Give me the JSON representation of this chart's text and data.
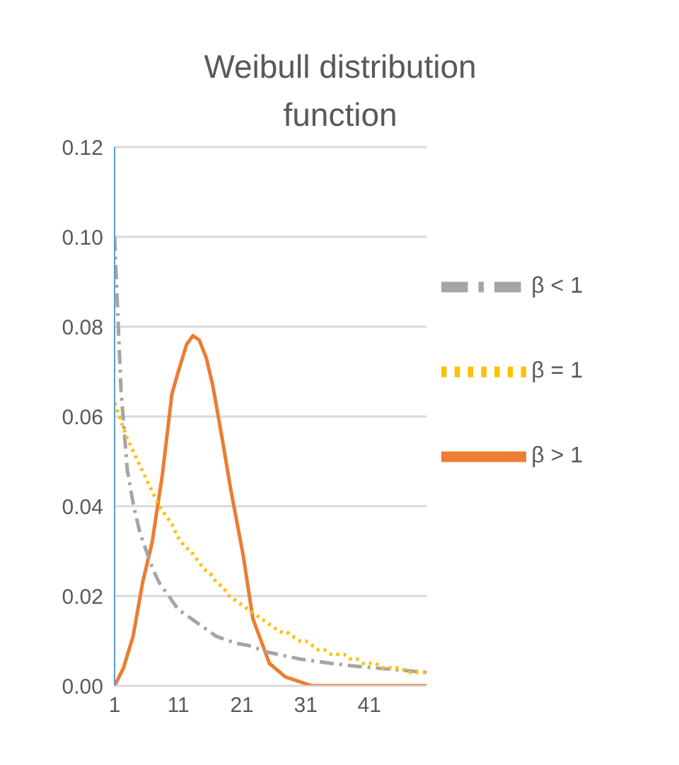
{
  "chart_data": {
    "type": "line",
    "title": "Weibull distribution function",
    "xlim": [
      1,
      50
    ],
    "xticks": [
      1,
      11,
      21,
      31,
      41
    ],
    "ylim": [
      0,
      0.12
    ],
    "yticks": [
      {
        "value": 0,
        "label": "0.00"
      },
      {
        "value": 0.02,
        "label": "0.02"
      },
      {
        "value": 0.04,
        "label": "0.04"
      },
      {
        "value": 0.06,
        "label": "0.06"
      },
      {
        "value": 0.08,
        "label": "0.08"
      },
      {
        "value": 0.1,
        "label": "0.10"
      },
      {
        "value": 0.12,
        "label": "0.12"
      }
    ],
    "grid": "y",
    "legend": "top right",
    "marker": "none",
    "series": [
      {
        "name": "β > 1",
        "color": "#ed7d31",
        "line_style": "solid",
        "x": [
          1,
          2.4,
          3.9,
          5.4,
          6.9,
          8.5,
          10,
          11,
          12.3,
          13.3,
          14.3,
          15.4,
          16.4,
          17.9,
          19.2,
          21.2,
          22.7,
          25.3,
          27.8,
          32,
          40,
          50
        ],
        "values": [
          0,
          0.004,
          0.011,
          0.023,
          0.032,
          0.047,
          0.065,
          0.07,
          0.076,
          0.078,
          0.077,
          0.073,
          0.067,
          0.055,
          0.044,
          0.029,
          0.015,
          0.005,
          0.002,
          0,
          0,
          0
        ]
      },
      {
        "name": "β < 1",
        "color": "#a5a5a5",
        "line_style": "dashed",
        "x": [
          1,
          2,
          3,
          4,
          5,
          6,
          7,
          8,
          9,
          10,
          11,
          12,
          13,
          14,
          15,
          16,
          17,
          18,
          20,
          22,
          25,
          30,
          35,
          40,
          45,
          50
        ],
        "values": [
          0.1,
          0.066,
          0.048,
          0.04,
          0.034,
          0.03,
          0.026,
          0.023,
          0.021,
          0.019,
          0.017,
          0.016,
          0.015,
          0.014,
          0.013,
          0.012,
          0.011,
          0.0105,
          0.0095,
          0.009,
          0.0075,
          0.006,
          0.005,
          0.0042,
          0.0036,
          0.003
        ]
      },
      {
        "name": "β = 1",
        "color": "#ffc000",
        "line_style": "dotted",
        "x": [
          1,
          2,
          3,
          4,
          5,
          6,
          7,
          8,
          9,
          10,
          11,
          12,
          13,
          14,
          15,
          16,
          17,
          18,
          19,
          20,
          21,
          22,
          23,
          24,
          25,
          26,
          27,
          28,
          29,
          30,
          31,
          32,
          33,
          34,
          35,
          36,
          37,
          38,
          39,
          40,
          41,
          42,
          43,
          44,
          45,
          46,
          47,
          48,
          49,
          50
        ],
        "values": [
          0.063,
          0.059,
          0.055,
          0.052,
          0.049,
          0.046,
          0.043,
          0.04,
          0.038,
          0.036,
          0.033,
          0.031,
          0.03,
          0.028,
          0.026,
          0.025,
          0.023,
          0.022,
          0.02,
          0.019,
          0.018,
          0.017,
          0.016,
          0.015,
          0.014,
          0.013,
          0.012,
          0.012,
          0.011,
          0.01,
          0.01,
          0.009,
          0.008,
          0.008,
          0.007,
          0.007,
          0.007,
          0.006,
          0.006,
          0.005,
          0.005,
          0.005,
          0.004,
          0.004,
          0.004,
          0.004,
          0.003,
          0.003,
          0.003,
          0.003
        ]
      }
    ]
  }
}
